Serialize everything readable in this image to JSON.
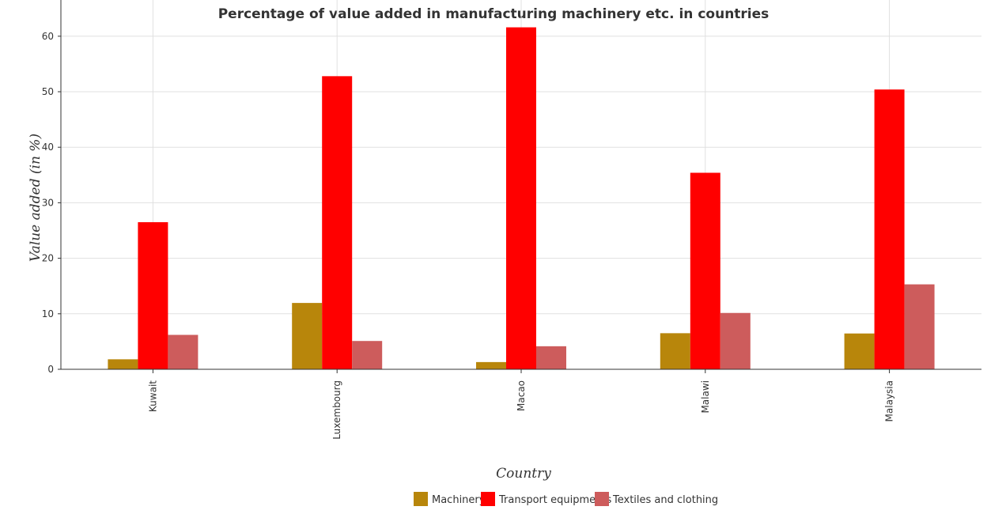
{
  "title": "Percentage of value added in manufacturing machinery etc. in countries",
  "colors": {
    "machinery": "#b8860b",
    "transport": "#ff0000",
    "textiles": "#cd5c5c",
    "grid": "#e0e0e0",
    "axis": "#333333"
  },
  "chart_data": {
    "type": "bar",
    "title": "Percentage of value added in manufacturing machinery etc. in countries",
    "xlabel": "Country",
    "ylabel": "Value added (in %)",
    "categories": [
      "Kuwait",
      "Luxembourg",
      "Macao",
      "Malawi",
      "Malaysia"
    ],
    "ylim": [
      0,
      65
    ],
    "yticks": [
      0,
      10,
      20,
      30,
      40,
      50,
      60
    ],
    "grid": true,
    "legend_position": "bottom",
    "series": [
      {
        "name": "Machinery",
        "color": "#b8860b",
        "values": [
          1.8,
          11.95,
          1.3,
          6.5,
          6.45
        ]
      },
      {
        "name": "Transport equipments",
        "color": "#ff0000",
        "values": [
          26.5,
          52.8,
          61.6,
          35.4,
          50.4
        ]
      },
      {
        "name": "Textiles and clothing",
        "color": "#cd5c5c",
        "values": [
          6.2,
          5.1,
          4.15,
          10.15,
          15.3
        ]
      }
    ]
  }
}
